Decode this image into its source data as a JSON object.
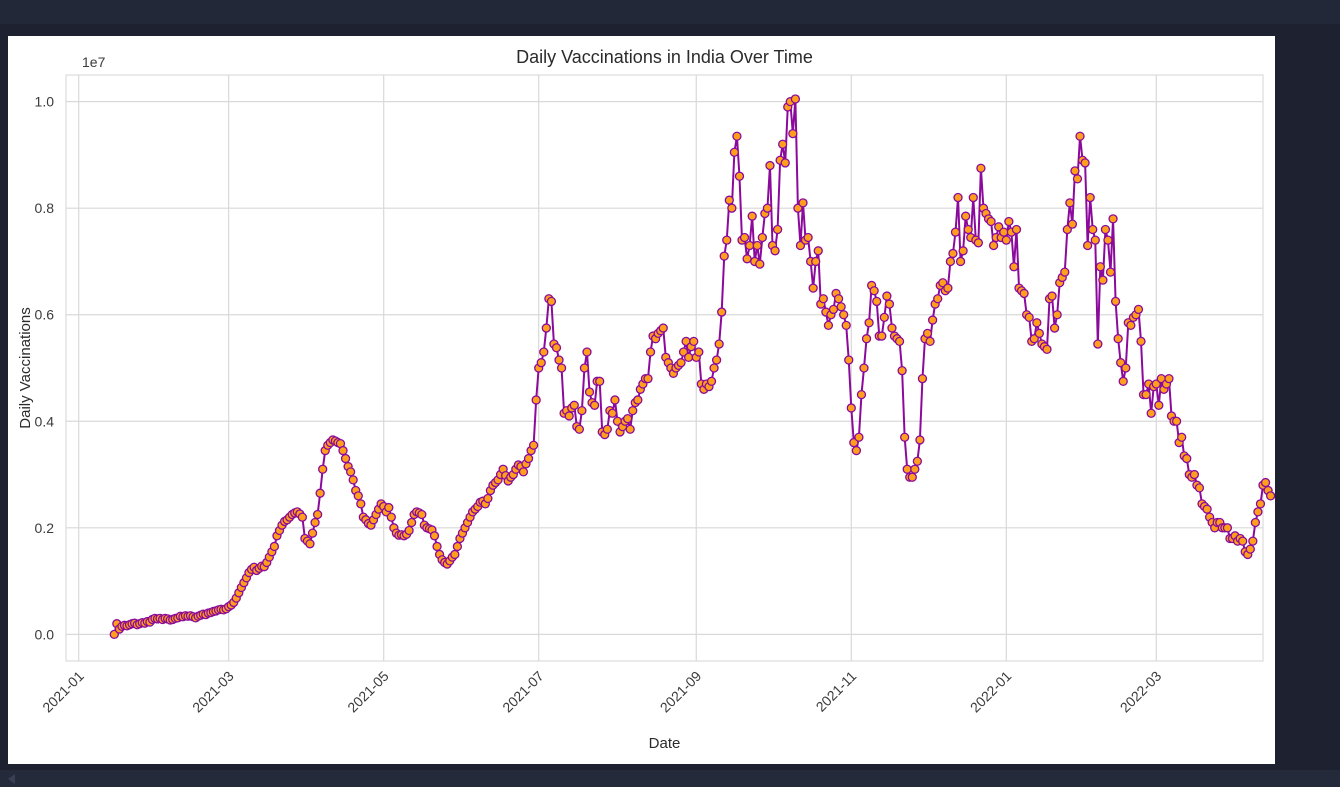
{
  "chart_data": {
    "type": "line",
    "title": "Daily Vaccinations in India Over Time",
    "xlabel": "Date",
    "ylabel": "Daily Vaccinations",
    "y_offset_text": "1e7",
    "y_scale_factor": 10000000,
    "ylim": [
      -0.05,
      1.05
    ],
    "xlim": [
      "2020-12-27",
      "2022-04-12"
    ],
    "grid": true,
    "x_tick_labels": [
      "2021-01",
      "2021-03",
      "2021-05",
      "2021-07",
      "2021-09",
      "2021-11",
      "2022-01",
      "2022-03"
    ],
    "x_tick_dates": [
      "2021-01-01",
      "2021-03-01",
      "2021-05-01",
      "2021-07-01",
      "2021-09-01",
      "2021-11-01",
      "2022-01-01",
      "2022-03-01"
    ],
    "y_tick_labels": [
      "0.0",
      "0.2",
      "0.4",
      "0.6",
      "0.8",
      "1.0"
    ],
    "y_tick_values": [
      0.0,
      0.2,
      0.4,
      0.6,
      0.8,
      1.0
    ],
    "line_color": "#8b0a9c",
    "marker_color": "#ff9f1c",
    "marker_edge_color": "#8b0a9c",
    "series": [
      {
        "x_start": "2021-01-15",
        "x_step_days": 1,
        "values": [
          0.0,
          0.02,
          0.01,
          0.015,
          0.017,
          0.016,
          0.018,
          0.02,
          0.021,
          0.018,
          0.02,
          0.022,
          0.021,
          0.024,
          0.023,
          0.028,
          0.03,
          0.029,
          0.03,
          0.028,
          0.03,
          0.029,
          0.027,
          0.028,
          0.03,
          0.031,
          0.034,
          0.033,
          0.035,
          0.034,
          0.035,
          0.033,
          0.031,
          0.034,
          0.036,
          0.038,
          0.037,
          0.04,
          0.041,
          0.043,
          0.044,
          0.046,
          0.047,
          0.046,
          0.048,
          0.052,
          0.055,
          0.06,
          0.068,
          0.078,
          0.088,
          0.097,
          0.106,
          0.116,
          0.122,
          0.126,
          0.12,
          0.124,
          0.128,
          0.127,
          0.135,
          0.145,
          0.155,
          0.165,
          0.185,
          0.195,
          0.205,
          0.212,
          0.215,
          0.22,
          0.225,
          0.228,
          0.23,
          0.226,
          0.22,
          0.18,
          0.175,
          0.17,
          0.19,
          0.21,
          0.225,
          0.265,
          0.31,
          0.345,
          0.355,
          0.36,
          0.365,
          0.363,
          0.36,
          0.358,
          0.345,
          0.33,
          0.315,
          0.305,
          0.29,
          0.27,
          0.26,
          0.245,
          0.22,
          0.215,
          0.208,
          0.205,
          0.215,
          0.225,
          0.235,
          0.245,
          0.24,
          0.23,
          0.238,
          0.22,
          0.2,
          0.19,
          0.186,
          0.187,
          0.185,
          0.188,
          0.195,
          0.21,
          0.225,
          0.23,
          0.228,
          0.225,
          0.205,
          0.2,
          0.198,
          0.196,
          0.185,
          0.165,
          0.15,
          0.14,
          0.135,
          0.132,
          0.138,
          0.145,
          0.15,
          0.165,
          0.18,
          0.19,
          0.2,
          0.21,
          0.22,
          0.23,
          0.235,
          0.24,
          0.248,
          0.25,
          0.245,
          0.255,
          0.27,
          0.28,
          0.285,
          0.29,
          0.3,
          0.31,
          0.298,
          0.288,
          0.295,
          0.3,
          0.31,
          0.318,
          0.315,
          0.305,
          0.32,
          0.33,
          0.345,
          0.355,
          0.44,
          0.5,
          0.51,
          0.53,
          0.575,
          0.63,
          0.625,
          0.545,
          0.538,
          0.515,
          0.5,
          0.415,
          0.42,
          0.41,
          0.425,
          0.43,
          0.39,
          0.385,
          0.42,
          0.5,
          0.53,
          0.455,
          0.435,
          0.43,
          0.475,
          0.475,
          0.38,
          0.375,
          0.385,
          0.42,
          0.415,
          0.44,
          0.4,
          0.38,
          0.39,
          0.4,
          0.405,
          0.385,
          0.42,
          0.435,
          0.44,
          0.46,
          0.47,
          0.48,
          0.48,
          0.53,
          0.56,
          0.555,
          0.565,
          0.57,
          0.575,
          0.52,
          0.51,
          0.5,
          0.49,
          0.5,
          0.505,
          0.51,
          0.53,
          0.55,
          0.52,
          0.54,
          0.55,
          0.52,
          0.53,
          0.47,
          0.46,
          0.47,
          0.465,
          0.475,
          0.5,
          0.515,
          0.545,
          0.605,
          0.71,
          0.74,
          0.815,
          0.8,
          0.905,
          0.935,
          0.86,
          0.74,
          0.745,
          0.705,
          0.73,
          0.785,
          0.7,
          0.73,
          0.695,
          0.745,
          0.79,
          0.8,
          0.88,
          0.73,
          0.72,
          0.76,
          0.89,
          0.92,
          0.885,
          0.99,
          1.0,
          0.94,
          1.005,
          0.8,
          0.73,
          0.81,
          0.74,
          0.745,
          0.7,
          0.65,
          0.7,
          0.72,
          0.62,
          0.63,
          0.605,
          0.58,
          0.6,
          0.61,
          0.64,
          0.63,
          0.615,
          0.6,
          0.58,
          0.515,
          0.425,
          0.36,
          0.345,
          0.37,
          0.45,
          0.5,
          0.555,
          0.585,
          0.655,
          0.645,
          0.625,
          0.56,
          0.56,
          0.595,
          0.635,
          0.62,
          0.575,
          0.56,
          0.555,
          0.55,
          0.495,
          0.37,
          0.31,
          0.295,
          0.295,
          0.31,
          0.325,
          0.365,
          0.48,
          0.555,
          0.565,
          0.55,
          0.59,
          0.62,
          0.63,
          0.655,
          0.66,
          0.645,
          0.65,
          0.7,
          0.715,
          0.755,
          0.82,
          0.7,
          0.72,
          0.785,
          0.76,
          0.745,
          0.82,
          0.74,
          0.735,
          0.875,
          0.8,
          0.79,
          0.78,
          0.775,
          0.73,
          0.745,
          0.765,
          0.745,
          0.755,
          0.74,
          0.775,
          0.755,
          0.69,
          0.76,
          0.65,
          0.645,
          0.64,
          0.6,
          0.595,
          0.55,
          0.555,
          0.585,
          0.565,
          0.545,
          0.54,
          0.535,
          0.63,
          0.635,
          0.575,
          0.6,
          0.66,
          0.67,
          0.68,
          0.76,
          0.81,
          0.77,
          0.87,
          0.855,
          0.935,
          0.89,
          0.885,
          0.73,
          0.82,
          0.76,
          0.74,
          0.545,
          0.69,
          0.665,
          0.76,
          0.74,
          0.68,
          0.78,
          0.625,
          0.555,
          0.51,
          0.475,
          0.5,
          0.585,
          0.58,
          0.595,
          0.6,
          0.61,
          0.55,
          0.45,
          0.45,
          0.47,
          0.415,
          0.465,
          0.47,
          0.43,
          0.48,
          0.46,
          0.47,
          0.48,
          0.41,
          0.4,
          0.4,
          0.36,
          0.37,
          0.335,
          0.33,
          0.3,
          0.295,
          0.3,
          0.28,
          0.275,
          0.245,
          0.24,
          0.235,
          0.22,
          0.21,
          0.2,
          0.21,
          0.21,
          0.2,
          0.2,
          0.2,
          0.18,
          0.18,
          0.185,
          0.175,
          0.18,
          0.175,
          0.155,
          0.15,
          0.16,
          0.175,
          0.21,
          0.23,
          0.245,
          0.28,
          0.285,
          0.27,
          0.26
        ]
      }
    ]
  }
}
